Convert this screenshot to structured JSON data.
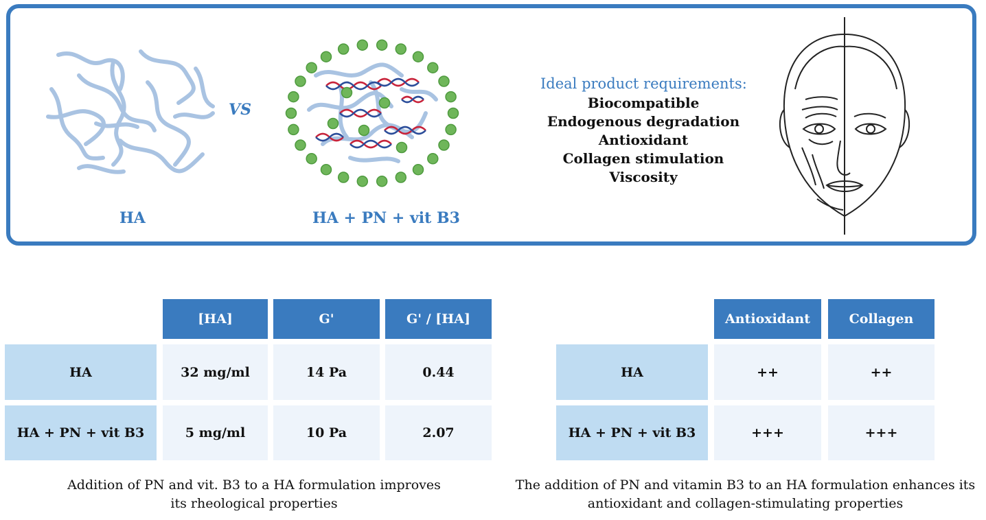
{
  "top_panel": {
    "left_label": "HA",
    "vs": "VS",
    "right_label": "HA + PN + vit B3",
    "requirements_title": "Ideal product requirements:",
    "requirements": [
      "Biocompatible",
      "Endogenous degradation",
      "Antioxidant",
      "Collagen stimulation",
      "Viscosity"
    ]
  },
  "table_rheology": {
    "columns": [
      "[HA]",
      "G'",
      "G' / [HA]"
    ],
    "rows": [
      {
        "label": "HA",
        "values": [
          "32 mg/ml",
          "14 Pa",
          "0.44"
        ]
      },
      {
        "label": "HA + PN + vit B3",
        "values": [
          "5 mg/ml",
          "10 Pa",
          "2.07"
        ]
      }
    ],
    "caption_line1": "Addition of PN and vit. B3 to a HA formulation improves",
    "caption_line2": "its rheological properties"
  },
  "table_bio": {
    "columns": [
      "Antioxidant",
      "Collagen"
    ],
    "rows": [
      {
        "label": "HA",
        "values": [
          "++",
          "++"
        ]
      },
      {
        "label": "HA + PN + vit B3",
        "values": [
          "+++",
          "+++"
        ]
      }
    ],
    "caption_line1": "The addition of PN and vitamin B3 to an HA formulation enhances its",
    "caption_line2": "antioxidant and collagen-stimulating properties"
  },
  "colors": {
    "accent": "#3a7bbf",
    "light_blue": "#bfdcf2",
    "cell_bg": "#eef4fb",
    "fiber": "#a9c3e2",
    "bead": "#6fb65a",
    "dna_red": "#c8233a",
    "dna_blue": "#2b4d9a"
  }
}
